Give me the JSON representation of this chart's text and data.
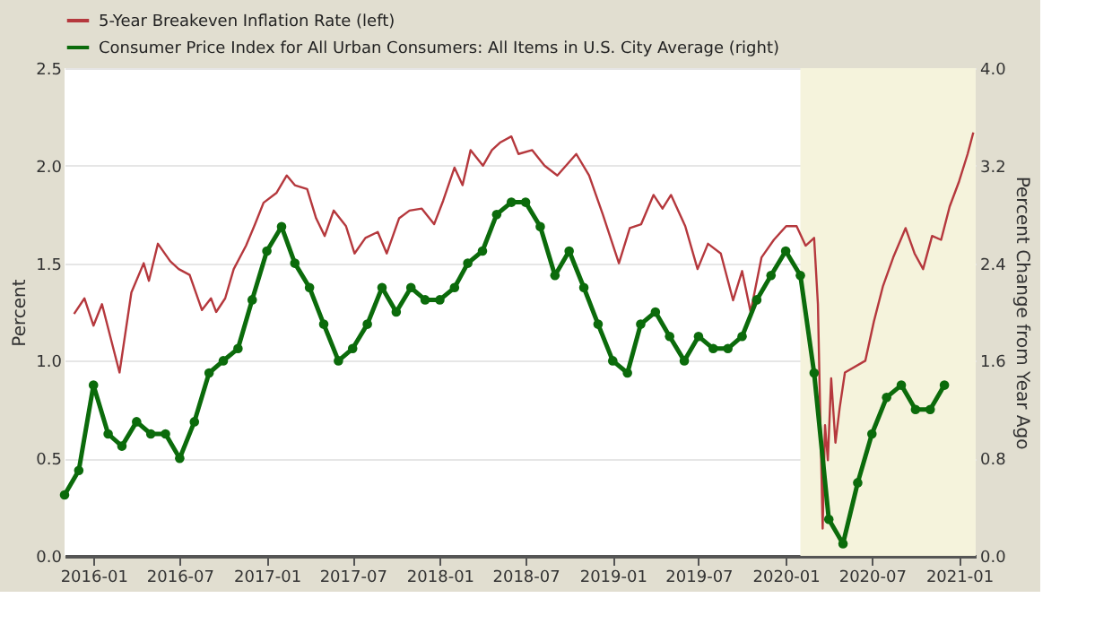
{
  "chart_data": {
    "type": "line",
    "xlabel": null,
    "ylabel": "Percent",
    "y2label": "Percent Change from Year Ago",
    "xlim": [
      "2015-11-01",
      "2021-02-05"
    ],
    "xticks": [
      "2016-01",
      "2016-07",
      "2017-01",
      "2017-07",
      "2018-01",
      "2018-07",
      "2019-01",
      "2019-07",
      "2020-01",
      "2020-07",
      "2021-01"
    ],
    "ylim": [
      0,
      2.5
    ],
    "yticks": [
      {
        "value": 0,
        "label": "0.0"
      },
      {
        "value": 0.5,
        "label": "0.5"
      },
      {
        "value": 1,
        "label": "1.0"
      },
      {
        "value": 1.5,
        "label": "1.5"
      },
      {
        "value": 2,
        "label": "2.0"
      },
      {
        "value": 2.5,
        "label": "2.5"
      }
    ],
    "y2lim": [
      0,
      4
    ],
    "y2ticks": [
      {
        "value": 0,
        "label": "0.0"
      },
      {
        "value": 0.8,
        "label": "0.8"
      },
      {
        "value": 1.6,
        "label": "1.6"
      },
      {
        "value": 2.4,
        "label": "2.4"
      },
      {
        "value": 3.2,
        "label": "3.2"
      },
      {
        "value": 4,
        "label": "4.0"
      }
    ],
    "grid": "y",
    "legend": "top left",
    "bands": [
      {
        "axis": "x",
        "from": "2020-02-01",
        "to": "2021-02-05",
        "color": "#f5f3dc"
      }
    ],
    "series": [
      {
        "name": "5-Year Breakeven Inflation Rate (left)",
        "color": "#b5383d",
        "marker": "none",
        "line_style": "solid",
        "x": [
          "2015-11-21",
          "2015-12-13",
          "2016-01-01",
          "2016-01-19",
          "2016-02-07",
          "2016-02-25",
          "2016-03-21",
          "2016-04-16",
          "2016-04-27",
          "2016-05-16",
          "2016-06-11",
          "2016-06-29",
          "2016-07-22",
          "2016-08-17",
          "2016-09-05",
          "2016-09-16",
          "2016-10-05",
          "2016-10-23",
          "2016-11-18",
          "2016-12-07",
          "2016-12-25",
          "2017-01-21",
          "2017-02-12",
          "2017-03-01",
          "2017-03-27",
          "2017-04-15",
          "2017-05-03",
          "2017-05-22",
          "2017-06-17",
          "2017-07-05",
          "2017-07-28",
          "2017-08-23",
          "2017-09-11",
          "2017-10-07",
          "2017-10-29",
          "2017-11-24",
          "2017-12-20",
          "2018-01-08",
          "2018-02-01",
          "2018-02-18",
          "2018-03-07",
          "2018-04-02",
          "2018-04-21",
          "2018-05-09",
          "2018-06-01",
          "2018-06-16",
          "2018-07-15",
          "2018-08-10",
          "2018-09-06",
          "2018-10-16",
          "2018-11-12",
          "2018-12-11",
          "2019-01-14",
          "2019-02-06",
          "2019-03-02",
          "2019-03-28",
          "2019-04-16",
          "2019-05-04",
          "2019-06-03",
          "2019-06-29",
          "2019-07-21",
          "2019-08-17",
          "2019-09-12",
          "2019-10-01",
          "2019-10-19",
          "2019-11-11",
          "2019-12-07",
          "2020-01-02",
          "2020-01-24",
          "2020-02-12",
          "2020-03-01",
          "2020-03-09",
          "2020-03-14",
          "2020-03-19",
          "2020-03-24",
          "2020-03-30",
          "2020-04-06",
          "2020-04-15",
          "2020-04-24",
          "2020-05-05",
          "2020-06-17",
          "2020-07-05",
          "2020-07-24",
          "2020-08-15",
          "2020-09-10",
          "2020-09-29",
          "2020-10-17",
          "2020-11-05",
          "2020-11-24",
          "2020-12-12",
          "2021-01-01",
          "2021-01-19",
          "2021-01-31"
        ],
        "values": [
          1.24,
          1.32,
          1.18,
          1.29,
          1.11,
          0.94,
          1.35,
          1.5,
          1.41,
          1.6,
          1.51,
          1.47,
          1.44,
          1.26,
          1.32,
          1.25,
          1.32,
          1.47,
          1.59,
          1.7,
          1.81,
          1.86,
          1.95,
          1.9,
          1.88,
          1.73,
          1.64,
          1.77,
          1.69,
          1.55,
          1.63,
          1.66,
          1.55,
          1.73,
          1.77,
          1.78,
          1.7,
          1.82,
          1.99,
          1.9,
          2.08,
          2.0,
          2.08,
          2.12,
          2.15,
          2.06,
          2.08,
          2.0,
          1.95,
          2.06,
          1.95,
          1.75,
          1.5,
          1.68,
          1.7,
          1.85,
          1.78,
          1.85,
          1.69,
          1.47,
          1.6,
          1.55,
          1.31,
          1.46,
          1.25,
          1.53,
          1.62,
          1.69,
          1.69,
          1.59,
          1.63,
          1.29,
          0.71,
          0.14,
          0.67,
          0.49,
          0.91,
          0.58,
          0.76,
          0.94,
          1.0,
          1.2,
          1.38,
          1.53,
          1.68,
          1.55,
          1.47,
          1.64,
          1.62,
          1.79,
          1.92,
          2.06,
          2.17
        ]
      },
      {
        "name": "Consumer Price Index for All Urban Consumers: All Items in U.S. City Average (right)",
        "color": "#0b6b0b",
        "axis": "y2",
        "marker": "circle",
        "line_style": "solid",
        "x": [
          "2015-11",
          "2015-12",
          "2016-01",
          "2016-02",
          "2016-03",
          "2016-04",
          "2016-05",
          "2016-06",
          "2016-07",
          "2016-08",
          "2016-09",
          "2016-10",
          "2016-11",
          "2016-12",
          "2017-01",
          "2017-02",
          "2017-03",
          "2017-04",
          "2017-05",
          "2017-06",
          "2017-07",
          "2017-08",
          "2017-09",
          "2017-10",
          "2017-11",
          "2017-12",
          "2018-01",
          "2018-02",
          "2018-03",
          "2018-04",
          "2018-05",
          "2018-06",
          "2018-07",
          "2018-08",
          "2018-09",
          "2018-10",
          "2018-11",
          "2018-12",
          "2019-01",
          "2019-02",
          "2019-03",
          "2019-04",
          "2019-05",
          "2019-06",
          "2019-07",
          "2019-08",
          "2019-09",
          "2019-10",
          "2019-11",
          "2019-12",
          "2020-01",
          "2020-02",
          "2020-03",
          "2020-04",
          "2020-05",
          "2020-06",
          "2020-07",
          "2020-08",
          "2020-09",
          "2020-10",
          "2020-11",
          "2020-12"
        ],
        "values": [
          0.5,
          0.7,
          1.4,
          1.0,
          0.9,
          1.1,
          1.0,
          1.0,
          0.8,
          1.1,
          1.5,
          1.6,
          1.7,
          2.1,
          2.5,
          2.7,
          2.4,
          2.2,
          1.9,
          1.6,
          1.7,
          1.9,
          2.2,
          2.0,
          2.2,
          2.1,
          2.1,
          2.2,
          2.4,
          2.5,
          2.8,
          2.9,
          2.9,
          2.7,
          2.3,
          2.5,
          2.2,
          1.9,
          1.6,
          1.5,
          1.9,
          2.0,
          1.8,
          1.6,
          1.8,
          1.7,
          1.7,
          1.8,
          2.1,
          2.3,
          2.5,
          2.3,
          1.5,
          0.3,
          0.1,
          0.6,
          1.0,
          1.3,
          1.4,
          1.2,
          1.2,
          1.4
        ]
      }
    ]
  }
}
